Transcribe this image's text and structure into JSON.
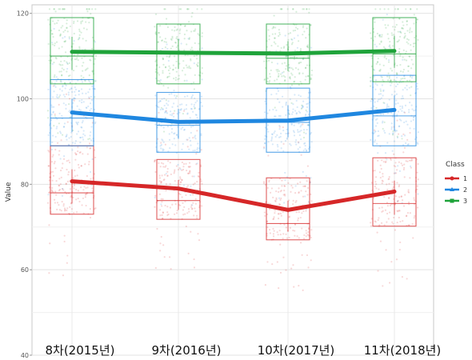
{
  "chart_data": {
    "type": "box",
    "ylabel": "Value",
    "ylim": [
      40,
      122
    ],
    "y_ticks": [
      40,
      60,
      80,
      100,
      120
    ],
    "grid": true,
    "categories": [
      "8차(2015년)",
      "9차(2016년)",
      "10차(2017년)",
      "11차(2018년)"
    ],
    "legend": {
      "title": "Class",
      "position": "right",
      "entries": [
        {
          "label": "1",
          "color": "#d62728",
          "marker": "circle"
        },
        {
          "label": "2",
          "color": "#1f87e0",
          "marker": "triangle"
        },
        {
          "label": "3",
          "color": "#1fa33a",
          "marker": "square"
        }
      ]
    },
    "series": [
      {
        "name": "1",
        "color": "#d62728",
        "mean": [
          80.7,
          79.0,
          74.0,
          78.3
        ],
        "boxes": [
          {
            "q1": 73.0,
            "q3": 89.0,
            "median": 78.0
          },
          {
            "q1": 71.8,
            "q3": 85.8,
            "median": 76.2
          },
          {
            "q1": 67.0,
            "q3": 81.5,
            "median": 70.8
          },
          {
            "q1": 70.2,
            "q3": 86.2,
            "median": 75.5
          }
        ]
      },
      {
        "name": "2",
        "color": "#1f87e0",
        "mean": [
          96.8,
          94.6,
          94.9,
          97.4
        ],
        "boxes": [
          {
            "q1": 89.0,
            "q3": 104.5,
            "median": 95.5
          },
          {
            "q1": 87.5,
            "q3": 101.5,
            "median": 93.8
          },
          {
            "q1": 87.5,
            "q3": 102.5,
            "median": 94.5
          },
          {
            "q1": 89.0,
            "q3": 105.5,
            "median": 96.0
          }
        ]
      },
      {
        "name": "3",
        "color": "#1fa33a",
        "mean": [
          111.0,
          110.8,
          110.6,
          111.2
        ],
        "boxes": [
          {
            "q1": 103.5,
            "q3": 119.0,
            "median": 110.0
          },
          {
            "q1": 103.5,
            "q3": 117.5,
            "median": 110.5
          },
          {
            "q1": 103.5,
            "q3": 117.5,
            "median": 109.5
          },
          {
            "q1": 104.0,
            "q3": 119.0,
            "median": 110.5
          }
        ]
      }
    ]
  }
}
